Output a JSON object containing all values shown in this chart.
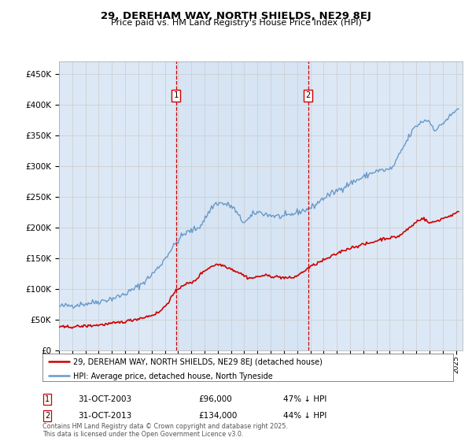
{
  "title": "29, DEREHAM WAY, NORTH SHIELDS, NE29 8EJ",
  "subtitle": "Price paid vs. HM Land Registry's House Price Index (HPI)",
  "ylabel_ticks": [
    "£0",
    "£50K",
    "£100K",
    "£150K",
    "£200K",
    "£250K",
    "£300K",
    "£350K",
    "£400K",
    "£450K"
  ],
  "ytick_values": [
    0,
    50000,
    100000,
    150000,
    200000,
    250000,
    300000,
    350000,
    400000,
    450000
  ],
  "ylim": [
    0,
    470000
  ],
  "xlim_start": 1995.0,
  "xlim_end": 2025.5,
  "hpi_color": "#6699cc",
  "price_color": "#cc0000",
  "marker1_date": 2003.83,
  "marker2_date": 2013.83,
  "marker1_label": "31-OCT-2003",
  "marker2_label": "31-OCT-2013",
  "marker1_price": "£96,000",
  "marker2_price": "£134,000",
  "marker1_pct": "47% ↓ HPI",
  "marker2_pct": "44% ↓ HPI",
  "legend_line1": "29, DEREHAM WAY, NORTH SHIELDS, NE29 8EJ (detached house)",
  "legend_line2": "HPI: Average price, detached house, North Tyneside",
  "footnote": "Contains HM Land Registry data © Crown copyright and database right 2025.\nThis data is licensed under the Open Government Licence v3.0.",
  "background_color": "#dce8f5",
  "plot_bg_color": "#ffffff",
  "grid_color": "#cccccc",
  "hpi_anchors_t": [
    1995.0,
    1996.5,
    1998.0,
    1999.5,
    2001.0,
    2002.5,
    2003.5,
    2004.5,
    2005.5,
    2007.0,
    2008.0,
    2009.0,
    2010.0,
    2011.0,
    2012.0,
    2013.0,
    2014.0,
    2015.0,
    2016.0,
    2017.0,
    2018.0,
    2019.0,
    2020.0,
    2021.0,
    2022.0,
    2022.8,
    2023.5,
    2024.0,
    2024.5,
    2025.2
  ],
  "hpi_anchors_v": [
    72000,
    75000,
    80000,
    88000,
    105000,
    135000,
    165000,
    190000,
    200000,
    240000,
    235000,
    210000,
    225000,
    220000,
    218000,
    225000,
    232000,
    248000,
    260000,
    272000,
    282000,
    292000,
    295000,
    330000,
    365000,
    375000,
    360000,
    370000,
    380000,
    395000
  ],
  "price_anchors_t": [
    1995.0,
    1997.0,
    1999.0,
    2001.0,
    2002.5,
    2003.0,
    2003.83,
    2004.5,
    2005.0,
    2006.0,
    2007.0,
    2008.5,
    2009.5,
    2010.5,
    2011.5,
    2012.5,
    2013.0,
    2013.83,
    2014.5,
    2015.5,
    2016.5,
    2017.5,
    2018.5,
    2019.5,
    2020.5,
    2021.5,
    2022.5,
    2023.0,
    2024.0,
    2025.2
  ],
  "price_anchors_v": [
    38000,
    40000,
    44000,
    52000,
    62000,
    72000,
    96000,
    108000,
    110000,
    130000,
    140000,
    128000,
    118000,
    122000,
    120000,
    118000,
    122000,
    134000,
    142000,
    152000,
    163000,
    170000,
    175000,
    182000,
    185000,
    200000,
    215000,
    208000,
    215000,
    225000
  ]
}
